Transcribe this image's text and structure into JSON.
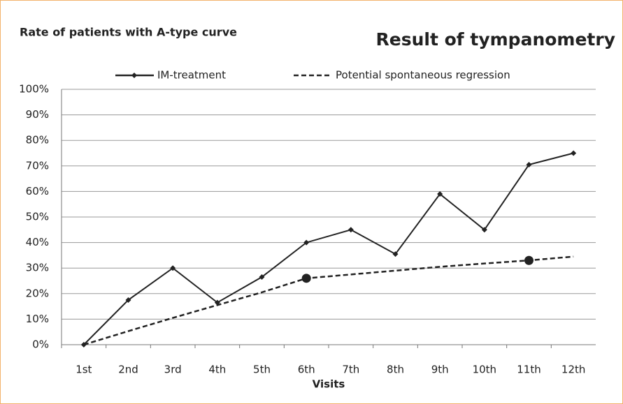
{
  "chart_data": {
    "type": "line",
    "title": "Result of tympanometry",
    "subtitle": "Rate of patients with A-type curve",
    "x_label": "Visits",
    "categories": [
      "1st",
      "2nd",
      "3rd",
      "4th",
      "5th",
      "6th",
      "7th",
      "8th",
      "9th",
      "10th",
      "11th",
      "12th"
    ],
    "series": [
      {
        "name": "IM-treatment",
        "color": "#222222",
        "style": "solid",
        "marker": "diamond",
        "values": [
          0,
          17.5,
          30,
          16.5,
          26.5,
          40,
          45,
          35.5,
          59,
          45,
          70.5,
          75
        ]
      },
      {
        "name": "Potential spontaneous regression",
        "color": "#222222",
        "style": "dashed",
        "marker_indices": [
          5,
          10
        ],
        "values": [
          0,
          5.3,
          10.5,
          15.5,
          20.5,
          26,
          27.5,
          29,
          30.5,
          31.8,
          33,
          34.5
        ]
      }
    ],
    "ylim": [
      0,
      100
    ],
    "yticks": [
      {
        "value": 0,
        "label": "0%"
      },
      {
        "value": 10,
        "label": "10%"
      },
      {
        "value": 20,
        "label": "20%"
      },
      {
        "value": 30,
        "label": "30%"
      },
      {
        "value": 40,
        "label": "40%"
      },
      {
        "value": 50,
        "label": "50%"
      },
      {
        "value": 60,
        "label": "60%"
      },
      {
        "value": 70,
        "label": "70%"
      },
      {
        "value": 80,
        "label": "80%"
      },
      {
        "value": 90,
        "label": "90%"
      },
      {
        "value": 100,
        "label": "100%"
      }
    ],
    "grid": true,
    "legend": "top"
  }
}
